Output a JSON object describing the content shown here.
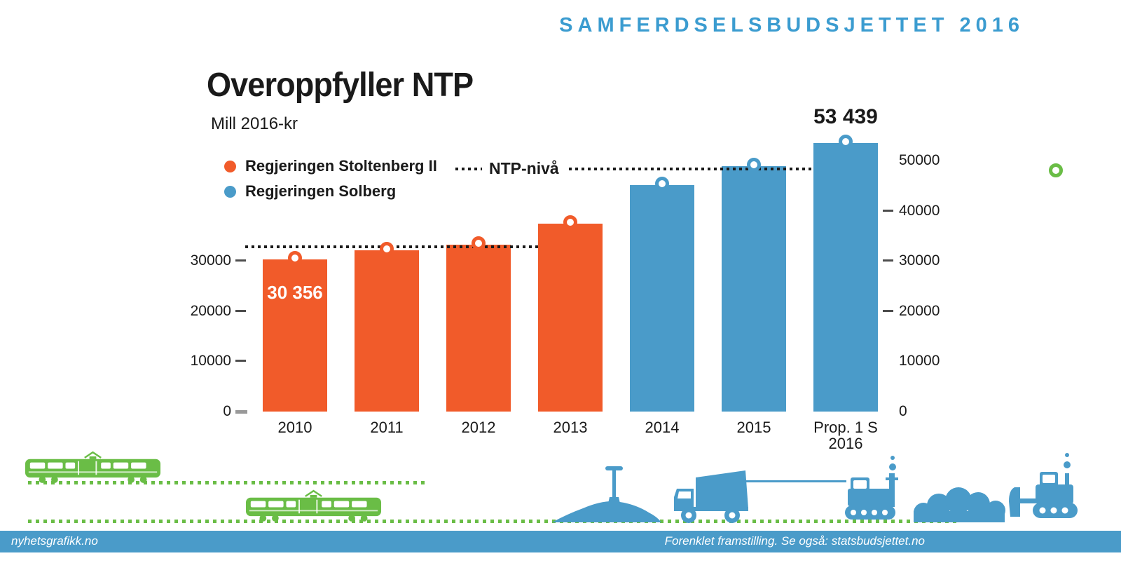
{
  "kicker": "SAMFERDSELSBUDSJETTET 2016",
  "title": "Overoppfyller NTP",
  "subtitle": "Mill 2016-kr",
  "legend": {
    "items": [
      {
        "label": "Regjeringen Stoltenberg II",
        "color": "#F15B2A"
      },
      {
        "label": "Regjeringen Solberg",
        "color": "#4A9BC9"
      }
    ]
  },
  "chart_data": {
    "type": "bar",
    "title": "Overoppfyller NTP",
    "unit_label": "Mill 2016-kr",
    "categories": [
      "2010",
      "2011",
      "2012",
      "2013",
      "2014",
      "2015",
      "Prop. 1 S 2016"
    ],
    "categories_display": [
      "2010",
      "2011",
      "2012",
      "2013",
      "2014",
      "2015",
      "Prop. 1 S\n2016"
    ],
    "values": [
      30356,
      32100,
      33200,
      37400,
      45100,
      48900,
      53439
    ],
    "colors": [
      "#F15B2A",
      "#F15B2A",
      "#F15B2A",
      "#F15B2A",
      "#4A9BC9",
      "#4A9BC9",
      "#4A9BC9"
    ],
    "series": [
      {
        "name": "Regjeringen Stoltenberg II",
        "color": "#F15B2A",
        "categories": [
          "2010",
          "2011",
          "2012",
          "2013"
        ]
      },
      {
        "name": "Regjeringen Solberg",
        "color": "#4A9BC9",
        "categories": [
          "2014",
          "2015",
          "Prop. 1 S 2016"
        ]
      }
    ],
    "value_labels": [
      {
        "index": 0,
        "text": "30 356",
        "placement": "inside"
      },
      {
        "index": 6,
        "text": "53 439",
        "placement": "above"
      }
    ],
    "ntp_level_lines": [
      {
        "label": "",
        "value": 32800,
        "period": "2010-2013"
      },
      {
        "label": "NTP-nivå",
        "value": 48300,
        "period": "2014-2016"
      }
    ],
    "ylim": [
      0,
      55000
    ],
    "yticks_left": [
      {
        "label": "0",
        "value": 0
      },
      {
        "label": "10000",
        "value": 10000
      },
      {
        "label": "20000",
        "value": 20000
      },
      {
        "label": "30000",
        "value": 30000
      }
    ],
    "yticks_right": [
      {
        "label": "0",
        "value": 0,
        "dash": false
      },
      {
        "label": "10000",
        "value": 10000,
        "dash": false
      },
      {
        "label": "20000",
        "value": 20000,
        "dash": true
      },
      {
        "label": "30000",
        "value": 30000,
        "dash": true
      },
      {
        "label": "40000",
        "value": 40000,
        "dash": true
      },
      {
        "label": "50000",
        "value": 50000,
        "dash": false
      }
    ],
    "grid": false,
    "legend_position": "upper-left"
  },
  "decorations": {
    "icons": [
      "tram-icon",
      "tram-icon",
      "gravel-pile-icon",
      "shovel-icon",
      "dump-truck-icon",
      "drill-rig-icon",
      "rock-pile-icon",
      "bulldozer-icon",
      "green-ring-marker"
    ]
  },
  "footer": {
    "left": "nyhetsgrafikk.no",
    "right": "Forenklet framstilling. Se også: statsbudsjettet.no"
  },
  "colors": {
    "accent_blue": "#3B9CD0",
    "bar_orange": "#F15B2A",
    "bar_blue": "#4A9BC9",
    "green": "#6ABD46",
    "line_dark": "#1A1A1A"
  }
}
